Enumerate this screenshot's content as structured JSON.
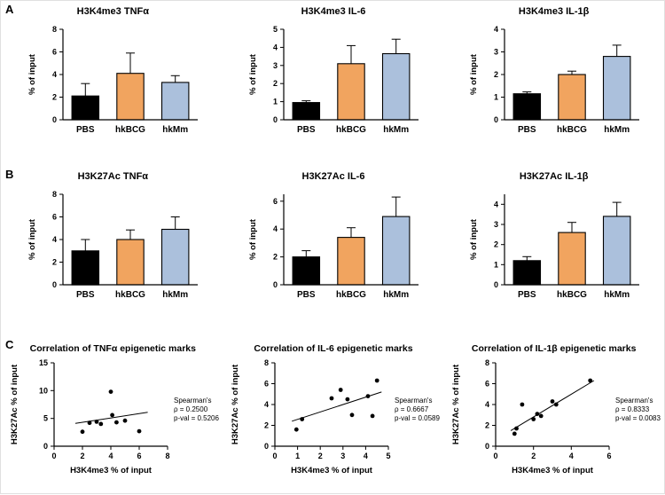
{
  "figure": {
    "panel_labels": [
      "A",
      "B",
      "C"
    ],
    "bar_colors": [
      "#000000",
      "#f1a45f",
      "#abc0dc"
    ],
    "accent_black": "#000000",
    "accent_orange": "#f1a45f",
    "accent_blue": "#abc0dc"
  },
  "chart_data": [
    {
      "type": "bar",
      "panel": "A",
      "title": "H3K4me3 TNFα",
      "ylabel": "% of input",
      "ylim": [
        0,
        8
      ],
      "yticks": [
        0,
        2,
        4,
        6,
        8
      ],
      "categories": [
        "PBS",
        "hkBCG",
        "hkMm"
      ],
      "values": [
        2.1,
        4.1,
        3.3
      ],
      "errors": [
        1.1,
        1.8,
        0.6
      ]
    },
    {
      "type": "bar",
      "panel": "A",
      "title": "H3K4me3 IL-6",
      "ylabel": "% of input",
      "ylim": [
        0,
        5
      ],
      "yticks": [
        0,
        1,
        2,
        3,
        4,
        5
      ],
      "categories": [
        "PBS",
        "hkBCG",
        "hkMm"
      ],
      "values": [
        0.95,
        3.1,
        3.65
      ],
      "errors": [
        0.1,
        1.0,
        0.8
      ]
    },
    {
      "type": "bar",
      "panel": "A",
      "title": "H3K4me3 IL-1β",
      "ylabel": "% of input",
      "ylim": [
        0,
        4
      ],
      "yticks": [
        0,
        1,
        2,
        3,
        4
      ],
      "categories": [
        "PBS",
        "hkBCG",
        "hkMm"
      ],
      "values": [
        1.15,
        2.0,
        2.8
      ],
      "errors": [
        0.08,
        0.15,
        0.5
      ]
    },
    {
      "type": "bar",
      "panel": "B",
      "title": "H3K27Ac TNFα",
      "ylabel": "% of input",
      "ylim": [
        0,
        8
      ],
      "yticks": [
        0,
        2,
        4,
        6,
        8
      ],
      "categories": [
        "PBS",
        "hkBCG",
        "hkMm"
      ],
      "values": [
        3.0,
        4.0,
        4.9
      ],
      "errors": [
        1.0,
        0.85,
        1.1
      ]
    },
    {
      "type": "bar",
      "panel": "B",
      "title": "H3K27Ac IL-6",
      "ylabel": "% of input",
      "ylim": [
        0,
        6.5
      ],
      "yticks": [
        0,
        2,
        4,
        6
      ],
      "categories": [
        "PBS",
        "hkBCG",
        "hkMm"
      ],
      "values": [
        2.0,
        3.4,
        4.9
      ],
      "errors": [
        0.45,
        0.7,
        1.4
      ]
    },
    {
      "type": "bar",
      "panel": "B",
      "title": "H3K27Ac IL-1β",
      "ylabel": "% of input",
      "ylim": [
        0,
        4.5
      ],
      "yticks": [
        0,
        1,
        2,
        3,
        4
      ],
      "categories": [
        "PBS",
        "hkBCG",
        "hkMm"
      ],
      "values": [
        1.2,
        2.6,
        3.4
      ],
      "errors": [
        0.2,
        0.5,
        0.7
      ]
    },
    {
      "type": "scatter",
      "panel": "C",
      "title": "Correlation of TNFα epigenetic marks",
      "xlabel": "H3K4me3 % of input",
      "ylabel": "H3K27Ac % of input",
      "xlim": [
        0,
        8
      ],
      "xticks": [
        0,
        2,
        4,
        6,
        8
      ],
      "ylim": [
        0,
        15
      ],
      "yticks": [
        0,
        5,
        10,
        15
      ],
      "points": [
        [
          2.0,
          2.6
        ],
        [
          2.5,
          4.2
        ],
        [
          3.0,
          4.4
        ],
        [
          3.3,
          4.0
        ],
        [
          4.0,
          9.8
        ],
        [
          4.1,
          5.6
        ],
        [
          4.4,
          4.3
        ],
        [
          5.0,
          4.6
        ],
        [
          6.0,
          2.7
        ]
      ],
      "trend": [
        [
          1.5,
          4.1
        ],
        [
          6.6,
          6.1
        ]
      ],
      "stats": {
        "label": "Spearman's",
        "rho": "ρ = 0.2500",
        "pval": "p-val = 0.5206"
      }
    },
    {
      "type": "scatter",
      "panel": "C",
      "title": "Correlation of IL-6 epigenetic marks",
      "xlabel": "H3K4me3 % of input",
      "ylabel": "H3K27Ac % of input",
      "xlim": [
        0,
        5
      ],
      "xticks": [
        0,
        1,
        2,
        3,
        4,
        5
      ],
      "ylim": [
        0,
        8
      ],
      "yticks": [
        0,
        2,
        4,
        6,
        8
      ],
      "points": [
        [
          0.95,
          1.6
        ],
        [
          1.2,
          2.6
        ],
        [
          2.5,
          4.6
        ],
        [
          2.9,
          5.4
        ],
        [
          3.2,
          4.5
        ],
        [
          3.4,
          3.0
        ],
        [
          4.1,
          4.8
        ],
        [
          4.3,
          2.9
        ],
        [
          4.5,
          6.3
        ]
      ],
      "trend": [
        [
          0.75,
          2.4
        ],
        [
          4.7,
          5.2
        ]
      ],
      "stats": {
        "label": "Spearman's",
        "rho": "ρ = 0.6667",
        "pval": "p-val = 0.0589"
      }
    },
    {
      "type": "scatter",
      "panel": "C",
      "title": "Correlation of IL-1β epigenetic marks",
      "xlabel": "H3K4me3 % of input",
      "ylabel": "H3K27Ac % of input",
      "xlim": [
        0,
        6
      ],
      "xticks": [
        0,
        2,
        4,
        6
      ],
      "ylim": [
        0,
        8
      ],
      "yticks": [
        0,
        2,
        4,
        6,
        8
      ],
      "points": [
        [
          1.0,
          1.2
        ],
        [
          1.1,
          1.7
        ],
        [
          1.4,
          4.0
        ],
        [
          2.0,
          2.6
        ],
        [
          2.2,
          3.1
        ],
        [
          2.4,
          2.9
        ],
        [
          3.0,
          4.3
        ],
        [
          3.2,
          4.0
        ],
        [
          5.0,
          6.3
        ]
      ],
      "trend": [
        [
          0.8,
          1.5
        ],
        [
          5.2,
          6.3
        ]
      ],
      "stats": {
        "label": "Spearman's",
        "rho": "ρ = 0.8333",
        "pval": "p-val = 0.0083"
      }
    }
  ]
}
